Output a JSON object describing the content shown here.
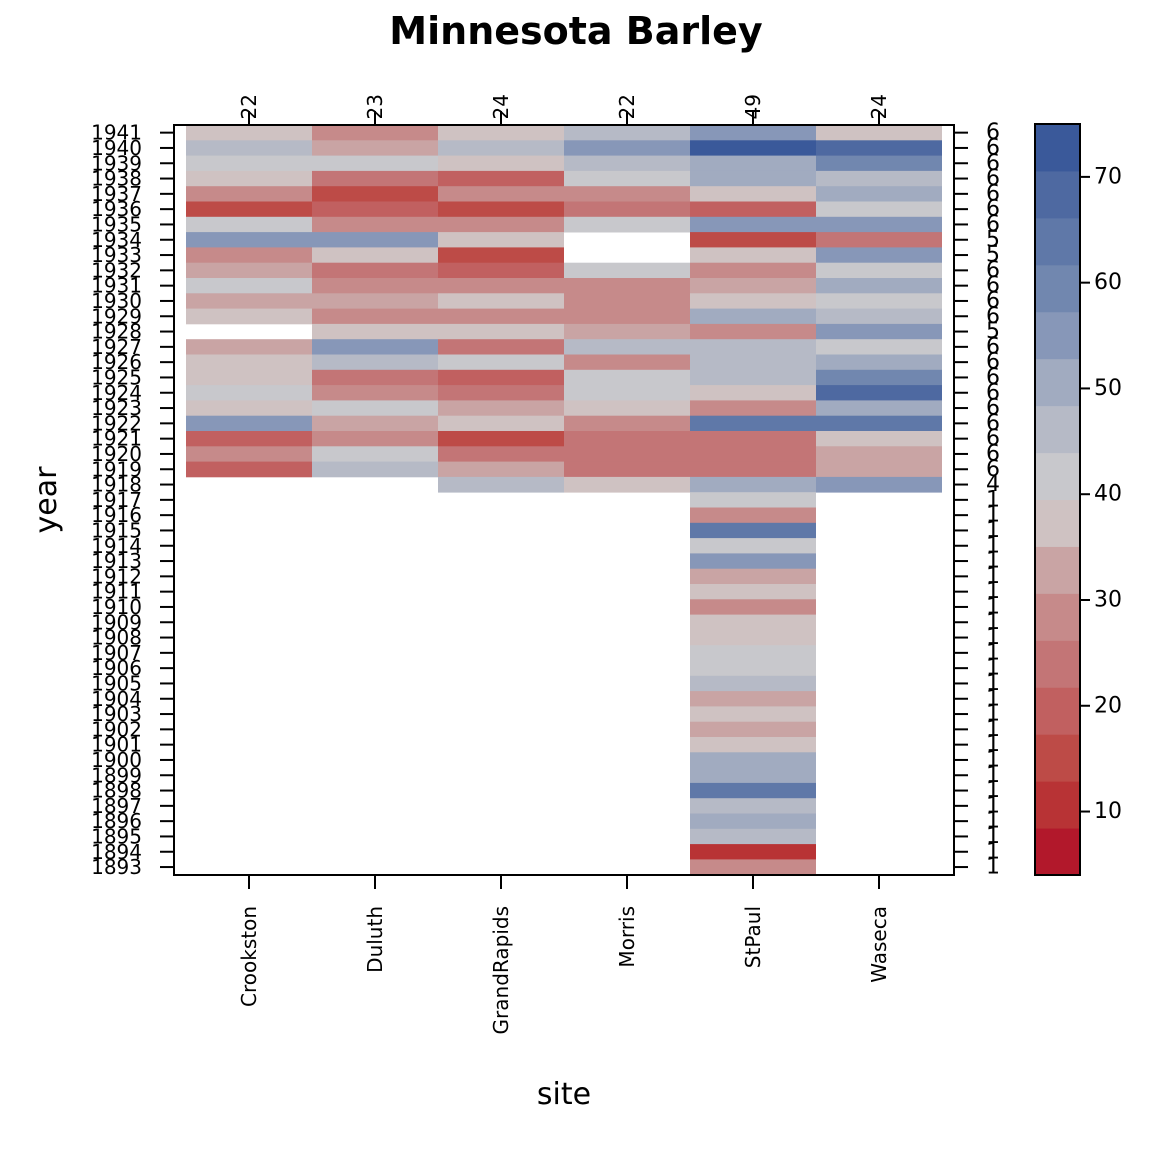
{
  "chart_data": {
    "type": "heatmap",
    "title": "Minnesota Barley",
    "xlabel": "site",
    "ylabel": "year",
    "sites": [
      "Crookston",
      "Duluth",
      "GrandRapids",
      "Morris",
      "StPaul",
      "Waseca"
    ],
    "top_counts": [
      "22",
      "23",
      "24",
      "22",
      "49",
      "24"
    ],
    "year_range": [
      1893,
      1941
    ],
    "years": [
      1941,
      1940,
      1939,
      1938,
      1937,
      1936,
      1935,
      1934,
      1933,
      1932,
      1931,
      1930,
      1929,
      1928,
      1927,
      1926,
      1925,
      1924,
      1923,
      1922,
      1921,
      1920,
      1919,
      1918,
      1917,
      1916,
      1915,
      1914,
      1913,
      1912,
      1911,
      1910,
      1909,
      1908,
      1907,
      1906,
      1905,
      1904,
      1903,
      1902,
      1901,
      1900,
      1899,
      1898,
      1897,
      1896,
      1895,
      1894,
      1893
    ],
    "right_counts": [
      "6",
      "6",
      "6",
      "6",
      "6",
      "6",
      "6",
      "5",
      "5",
      "6",
      "6",
      "6",
      "6",
      "5",
      "6",
      "6",
      "6",
      "6",
      "6",
      "6",
      "6",
      "6",
      "6",
      "4",
      "1",
      "1",
      "1",
      "1",
      "1",
      "1",
      "1",
      "1",
      "1",
      "1",
      "1",
      "1",
      "1",
      "1",
      "1",
      "1",
      "1",
      "1",
      "1",
      "1",
      "1",
      "1",
      "1",
      "1",
      "1"
    ],
    "values": [
      [
        36,
        29,
        37,
        45,
        53,
        36
      ],
      [
        45,
        32,
        44,
        57,
        73,
        68
      ],
      [
        41,
        42,
        38,
        47,
        49,
        58
      ],
      [
        37,
        26,
        20,
        41,
        51,
        44
      ],
      [
        30,
        17,
        27,
        29,
        38,
        50
      ],
      [
        14,
        18,
        17,
        24,
        18,
        41
      ],
      [
        42,
        28,
        28,
        41,
        57,
        55
      ],
      [
        53,
        53,
        38,
        null,
        14,
        22
      ],
      [
        29,
        39,
        14,
        null,
        36,
        53
      ],
      [
        32,
        23,
        21,
        41,
        28,
        41
      ],
      [
        42,
        28,
        29,
        29,
        34,
        49
      ],
      [
        33,
        31,
        39,
        29,
        38,
        42
      ],
      [
        38,
        28,
        29,
        29,
        49,
        45
      ],
      [
        null,
        36,
        36,
        31,
        30,
        57
      ],
      [
        32,
        53,
        22,
        44,
        45,
        40
      ],
      [
        37,
        44,
        41,
        28,
        45,
        49
      ],
      [
        37,
        26,
        20,
        41,
        45,
        60
      ],
      [
        41,
        30,
        24,
        41,
        37,
        70
      ],
      [
        38,
        41,
        31,
        37,
        27,
        49
      ],
      [
        53,
        31,
        37,
        28,
        62,
        66
      ],
      [
        20,
        28,
        14,
        24,
        25,
        37
      ],
      [
        27,
        42,
        24,
        24,
        22,
        32
      ],
      [
        20,
        45,
        31,
        25,
        23,
        32
      ],
      [
        null,
        null,
        45,
        36,
        52,
        57
      ],
      [
        null,
        null,
        null,
        null,
        42,
        null
      ],
      [
        null,
        null,
        null,
        null,
        28,
        null
      ],
      [
        null,
        null,
        null,
        null,
        66,
        null
      ],
      [
        null,
        null,
        null,
        null,
        42,
        null
      ],
      [
        null,
        null,
        null,
        null,
        57,
        null
      ],
      [
        null,
        null,
        null,
        null,
        31,
        null
      ],
      [
        null,
        null,
        null,
        null,
        37,
        null
      ],
      [
        null,
        null,
        null,
        null,
        28,
        null
      ],
      [
        null,
        null,
        null,
        null,
        37,
        null
      ],
      [
        null,
        null,
        null,
        null,
        37,
        null
      ],
      [
        null,
        null,
        null,
        null,
        41,
        null
      ],
      [
        null,
        null,
        null,
        null,
        41,
        null
      ],
      [
        null,
        null,
        null,
        null,
        47,
        null
      ],
      [
        null,
        null,
        null,
        null,
        32,
        null
      ],
      [
        null,
        null,
        null,
        null,
        38,
        null
      ],
      [
        null,
        null,
        null,
        null,
        31,
        null
      ],
      [
        null,
        null,
        null,
        null,
        37,
        null
      ],
      [
        null,
        null,
        null,
        null,
        49,
        null
      ],
      [
        null,
        null,
        null,
        null,
        49,
        null
      ],
      [
        null,
        null,
        null,
        null,
        62,
        null
      ],
      [
        null,
        null,
        null,
        null,
        45,
        null
      ],
      [
        null,
        null,
        null,
        null,
        49,
        null
      ],
      [
        null,
        null,
        null,
        null,
        45,
        null
      ],
      [
        null,
        null,
        null,
        null,
        11,
        null
      ],
      [
        null,
        null,
        null,
        null,
        27,
        null
      ]
    ],
    "colorbar": {
      "range": [
        4,
        75
      ],
      "ticks": [
        10,
        20,
        30,
        40,
        50,
        60,
        70
      ],
      "colors": [
        "#B2182B",
        "#B83335",
        "#BD4B47",
        "#C16060",
        "#C37576",
        "#C68A8A",
        "#C9A4A4",
        "#CFC2C2",
        "#C8C8CC",
        "#B6BAC6",
        "#A1ABC0",
        "#8797B8",
        "#7187AF",
        "#5F78A8",
        "#4E69A1",
        "#3A599A"
      ]
    }
  }
}
